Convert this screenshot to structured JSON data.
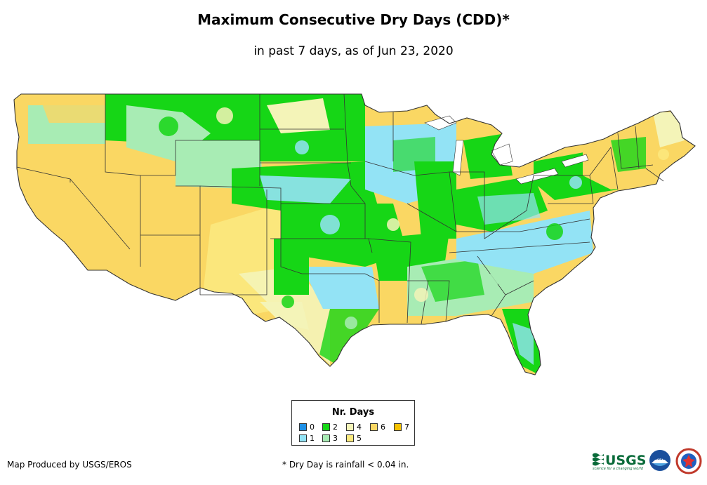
{
  "header": {
    "title": "Maximum Consecutive Dry Days (CDD)*",
    "subtitle": "in past 7 days, as of Jun 23, 2020"
  },
  "legend": {
    "title": "Nr. Days",
    "items": [
      {
        "label": "0",
        "color": "#1e90e6"
      },
      {
        "label": "1",
        "color": "#93e3f5"
      },
      {
        "label": "2",
        "color": "#16d616"
      },
      {
        "label": "3",
        "color": "#a8ecb4"
      },
      {
        "label": "4",
        "color": "#f4f4b8"
      },
      {
        "label": "5",
        "color": "#fbe97e"
      },
      {
        "label": "6",
        "color": "#fad763"
      },
      {
        "label": "7",
        "color": "#f6c200"
      }
    ]
  },
  "footer": {
    "credit": "Map Produced by USGS/EROS",
    "footnote": "* Dry Day is rainfall < 0.04 in.",
    "logos": {
      "usgs_text": "USGS",
      "usgs_tagline": "science for a changing world",
      "noaa_text": "noaa",
      "nws_icon": "nws-seal-icon"
    }
  },
  "map": {
    "region": "Contiguous United States",
    "state_border_color": "#333333",
    "land_base_color": "#fad763"
  }
}
